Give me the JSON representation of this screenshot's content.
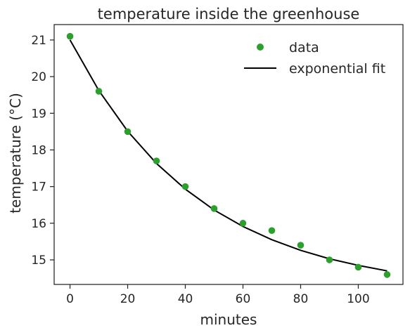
{
  "chart_data": {
    "type": "scatter",
    "title": "temperature inside the greenhouse",
    "xlabel": "minutes",
    "ylabel": "temperature (°C)",
    "xlim": [
      -5.5,
      115.5
    ],
    "ylim": [
      14.33,
      21.42
    ],
    "xticks": [
      0,
      20,
      40,
      60,
      80,
      100
    ],
    "yticks": [
      15,
      16,
      17,
      18,
      19,
      20,
      21
    ],
    "grid": false,
    "legend_position": "top-right",
    "series": [
      {
        "name": "data",
        "kind": "scatter",
        "color": "#2ca02c",
        "x": [
          0,
          10,
          20,
          30,
          40,
          50,
          60,
          70,
          80,
          90,
          100,
          110
        ],
        "y": [
          21.1,
          19.6,
          18.5,
          17.7,
          17.0,
          16.4,
          16.0,
          15.8,
          15.4,
          15.0,
          14.8,
          14.6
        ]
      },
      {
        "name": "exponential fit",
        "kind": "line",
        "color": "#000000",
        "x": [
          0,
          10,
          20,
          30,
          40,
          50,
          60,
          70,
          80,
          90,
          100,
          110
        ],
        "y": [
          21.0,
          19.62,
          18.51,
          17.63,
          16.93,
          16.36,
          15.91,
          15.55,
          15.26,
          15.03,
          14.85,
          14.7
        ]
      }
    ]
  }
}
